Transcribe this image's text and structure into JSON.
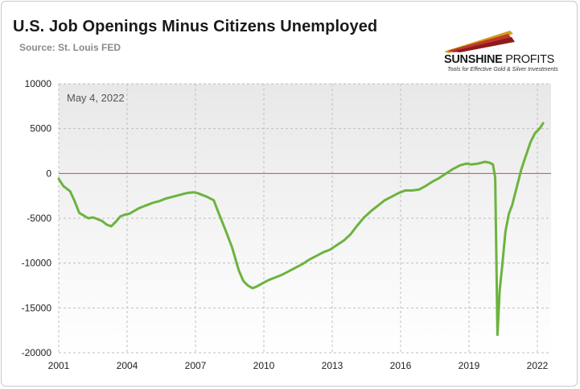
{
  "header": {
    "title": "U.S. Job Openings Minus Citizens Unemployed",
    "source": "Source: St. Louis FED"
  },
  "logo": {
    "name_bold": "SUNSHINE",
    "name_light": " PROFITS",
    "tagline": "Tools for Effective Gold & Silver Investments",
    "colors": [
      "#d4a017",
      "#c0392b",
      "#8e1b1b"
    ]
  },
  "colors": {
    "line": "#6cb33f",
    "zero_line": "#c0504d",
    "plot_bg_light": "#ffffff",
    "plot_bg_dark": "#e8e8e8",
    "grid": "#bfbfbf"
  },
  "chart_data": {
    "type": "line",
    "title": "U.S. Job Openings Minus Citizens Unemployed",
    "subtitle": "Source: St. Louis FED",
    "annotation": "May 4, 2022",
    "xlabel": "",
    "ylabel": "",
    "xlim": [
      2001,
      2022.6
    ],
    "ylim": [
      -20000,
      10000
    ],
    "yticks": [
      10000,
      5000,
      0,
      -5000,
      -10000,
      -15000,
      -20000
    ],
    "ytick_labels": [
      "10000",
      "5000",
      "0",
      "-5000",
      "-10000",
      "-15000",
      "-20000"
    ],
    "xticks": [
      2001,
      2004,
      2007,
      2010,
      2013,
      2016,
      2019,
      2022
    ],
    "xtick_labels": [
      "2001",
      "2004",
      "2007",
      "2010",
      "2013",
      "2016",
      "2019",
      "2022"
    ],
    "grid": true,
    "reference_line": 0,
    "series": [
      {
        "x": [
          2001.0,
          2001.2,
          2001.5,
          2001.7,
          2001.9,
          2002.1,
          2002.3,
          2002.5,
          2002.7,
          2002.9,
          2003.1,
          2003.3,
          2003.5,
          2003.7,
          2003.9,
          2004.1,
          2004.3,
          2004.5,
          2004.7,
          2004.9,
          2005.1,
          2005.4,
          2005.7,
          2006.0,
          2006.3,
          2006.6,
          2006.9,
          2007.1,
          2007.3,
          2007.5,
          2007.8,
          2008.0,
          2008.3,
          2008.6,
          2008.9,
          2009.1,
          2009.3,
          2009.5,
          2009.7,
          2009.9,
          2010.2,
          2010.5,
          2010.8,
          2011.1,
          2011.4,
          2011.7,
          2012.0,
          2012.3,
          2012.6,
          2012.9,
          2013.2,
          2013.5,
          2013.8,
          2014.1,
          2014.4,
          2014.7,
          2015.0,
          2015.3,
          2015.6,
          2015.9,
          2016.2,
          2016.5,
          2016.8,
          2017.1,
          2017.4,
          2017.7,
          2018.0,
          2018.3,
          2018.6,
          2018.9,
          2019.1,
          2019.4,
          2019.7,
          2019.9,
          2020.05,
          2020.15,
          2020.25,
          2020.35,
          2020.45,
          2020.6,
          2020.75,
          2020.9,
          2021.1,
          2021.3,
          2021.5,
          2021.7,
          2021.9,
          2022.1,
          2022.25
        ],
        "y": [
          -600,
          -1400,
          -2000,
          -3100,
          -4400,
          -4700,
          -5000,
          -4900,
          -5100,
          -5300,
          -5700,
          -5900,
          -5400,
          -4800,
          -4600,
          -4500,
          -4200,
          -3900,
          -3700,
          -3500,
          -3300,
          -3100,
          -2800,
          -2600,
          -2400,
          -2200,
          -2100,
          -2200,
          -2400,
          -2600,
          -3000,
          -4300,
          -6200,
          -8200,
          -10800,
          -12000,
          -12500,
          -12800,
          -12600,
          -12300,
          -11900,
          -11600,
          -11300,
          -10900,
          -10500,
          -10100,
          -9600,
          -9200,
          -8800,
          -8500,
          -8000,
          -7500,
          -6800,
          -5800,
          -4900,
          -4200,
          -3600,
          -3000,
          -2600,
          -2200,
          -1900,
          -1900,
          -1800,
          -1400,
          -900,
          -500,
          0,
          500,
          900,
          1100,
          1000,
          1100,
          1300,
          1200,
          1000,
          -500,
          -18000,
          -13000,
          -10500,
          -6500,
          -4500,
          -3500,
          -1500,
          500,
          2000,
          3500,
          4500,
          5000,
          5600
        ]
      }
    ]
  }
}
